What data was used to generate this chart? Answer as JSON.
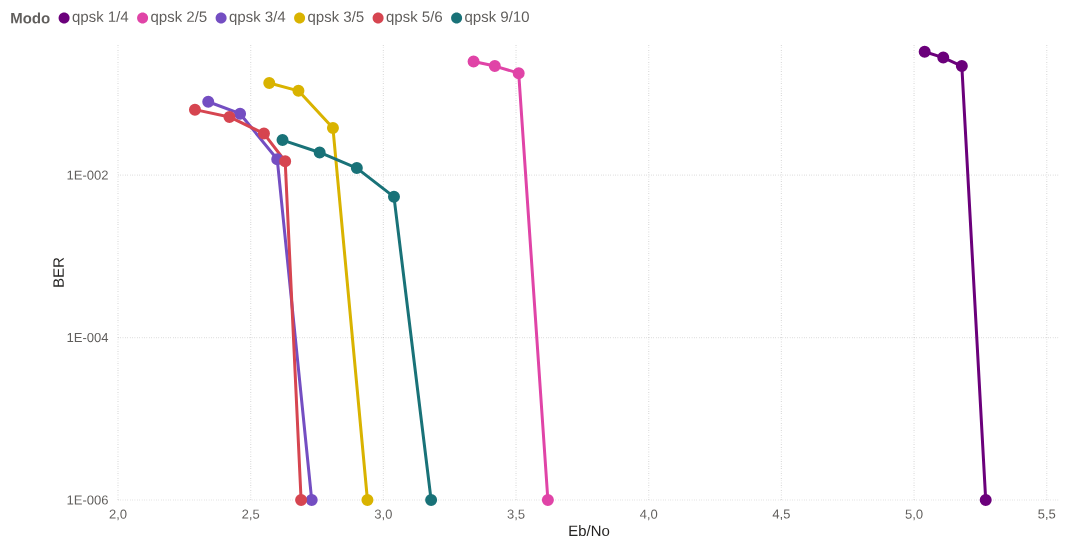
{
  "chart_data": {
    "type": "line",
    "xlabel": "Eb/No",
    "ylabel": "BER",
    "legend_title": "Modo",
    "legend": "top left",
    "log": "y",
    "grid": true,
    "marker": "circle",
    "line_style": "solid",
    "xlim": [
      2.0,
      5.55
    ],
    "ylim": [
      1e-06,
      0.4
    ],
    "xticks": [
      {
        "value": 2.0,
        "label": "2,0"
      },
      {
        "value": 2.5,
        "label": "2,5"
      },
      {
        "value": 3.0,
        "label": "3,0"
      },
      {
        "value": 3.5,
        "label": "3,5"
      },
      {
        "value": 4.0,
        "label": "4,0"
      },
      {
        "value": 4.5,
        "label": "4,5"
      },
      {
        "value": 5.0,
        "label": "5,0"
      },
      {
        "value": 5.5,
        "label": "5,5"
      }
    ],
    "yticks": [
      {
        "value": 1e-06,
        "label": "1E-006"
      },
      {
        "value": 0.0001,
        "label": "1E-004"
      },
      {
        "value": 0.01,
        "label": "1E-002"
      }
    ],
    "series": [
      {
        "name": "qpsk 1/4",
        "color": "#6b007b",
        "x": [
          5.04,
          5.11,
          5.18,
          5.27
        ],
        "values": [
          0.33,
          0.28,
          0.22,
          1e-06
        ]
      },
      {
        "name": "qpsk 2/5",
        "color": "#e044a7",
        "x": [
          3.34,
          3.42,
          3.51,
          3.62
        ],
        "values": [
          0.25,
          0.22,
          0.18,
          1e-06
        ]
      },
      {
        "name": "qpsk 3/4",
        "color": "#744ec2",
        "x": [
          2.34,
          2.46,
          2.6,
          2.73
        ],
        "values": [
          0.08,
          0.057,
          0.0157,
          1e-06
        ]
      },
      {
        "name": "qpsk 3/5",
        "color": "#d9b300",
        "x": [
          2.57,
          2.68,
          2.81,
          2.94
        ],
        "values": [
          0.136,
          0.109,
          0.038,
          1e-06
        ]
      },
      {
        "name": "qpsk 5/6",
        "color": "#d64550",
        "x": [
          2.29,
          2.42,
          2.55,
          2.63,
          2.69
        ],
        "values": [
          0.064,
          0.052,
          0.0325,
          0.0148,
          1e-06
        ]
      },
      {
        "name": "qpsk 9/10",
        "color": "#197278",
        "x": [
          2.62,
          2.76,
          2.9,
          3.04,
          3.18
        ],
        "values": [
          0.027,
          0.019,
          0.0122,
          0.0054,
          1e-06
        ]
      }
    ]
  }
}
